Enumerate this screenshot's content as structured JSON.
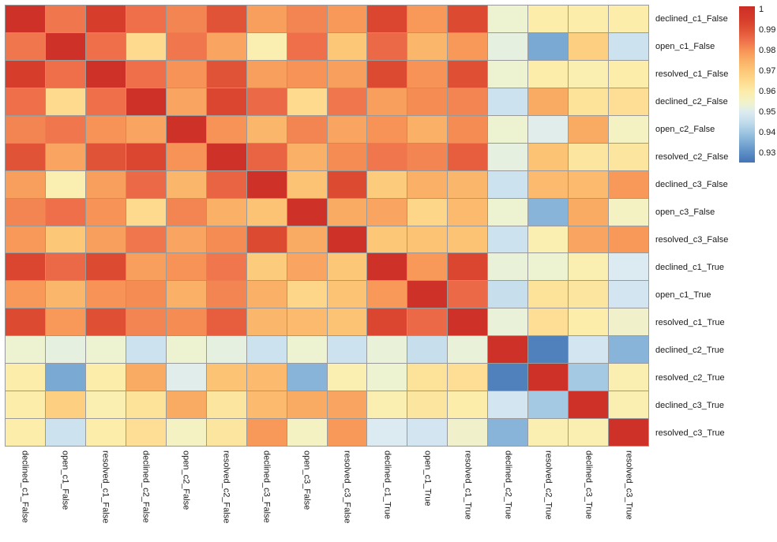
{
  "chart_data": {
    "type": "heatmap",
    "title": "",
    "xlabel": "",
    "ylabel": "",
    "legend_position": "colorbar-right",
    "grid": true,
    "grid_color": "#9a9a9a",
    "background": "#ffffff",
    "label_color": "#1a1a1a",
    "colormap": "RdYlBu_r",
    "categories": [
      "declined_c1_False",
      "open_c1_False",
      "resolved_c1_False",
      "declined_c2_False",
      "open_c2_False",
      "resolved_c2_False",
      "declined_c3_False",
      "open_c3_False",
      "resolved_c3_False",
      "declined_c1_True",
      "open_c1_True",
      "resolved_c1_True",
      "declined_c2_True",
      "resolved_c2_True",
      "declined_c3_True",
      "resolved_c3_True"
    ],
    "matrix": [
      [
        1.0,
        0.984,
        0.995,
        0.985,
        0.982,
        0.99,
        0.978,
        0.982,
        0.979,
        0.993,
        0.979,
        0.992,
        0.954,
        0.96,
        0.96,
        0.96
      ],
      [
        0.984,
        1.0,
        0.985,
        0.965,
        0.984,
        0.977,
        0.959,
        0.985,
        0.97,
        0.986,
        0.974,
        0.979,
        0.952,
        0.935,
        0.968,
        0.947
      ],
      [
        0.995,
        0.985,
        1.0,
        0.985,
        0.98,
        0.99,
        0.978,
        0.98,
        0.978,
        0.992,
        0.98,
        0.991,
        0.954,
        0.96,
        0.959,
        0.96
      ],
      [
        0.985,
        0.965,
        0.985,
        1.0,
        0.977,
        0.993,
        0.986,
        0.965,
        0.984,
        0.978,
        0.981,
        0.982,
        0.947,
        0.976,
        0.963,
        0.964
      ],
      [
        0.982,
        0.984,
        0.98,
        0.977,
        1.0,
        0.98,
        0.974,
        0.982,
        0.977,
        0.98,
        0.975,
        0.981,
        0.954,
        0.951,
        0.976,
        0.956
      ],
      [
        0.99,
        0.977,
        0.99,
        0.993,
        0.98,
        1.0,
        0.987,
        0.975,
        0.981,
        0.984,
        0.982,
        0.988,
        0.952,
        0.971,
        0.962,
        0.962
      ],
      [
        0.978,
        0.959,
        0.978,
        0.986,
        0.974,
        0.987,
        1.0,
        0.971,
        0.992,
        0.969,
        0.975,
        0.974,
        0.947,
        0.973,
        0.973,
        0.979
      ],
      [
        0.982,
        0.985,
        0.98,
        0.965,
        0.982,
        0.975,
        0.971,
        1.0,
        0.976,
        0.977,
        0.966,
        0.973,
        0.954,
        0.937,
        0.976,
        0.956
      ],
      [
        0.979,
        0.97,
        0.978,
        0.984,
        0.977,
        0.981,
        0.992,
        0.976,
        1.0,
        0.97,
        0.971,
        0.971,
        0.947,
        0.959,
        0.977,
        0.979
      ],
      [
        0.993,
        0.986,
        0.992,
        0.978,
        0.98,
        0.984,
        0.969,
        0.977,
        0.97,
        1.0,
        0.979,
        0.993,
        0.953,
        0.954,
        0.959,
        0.95
      ],
      [
        0.979,
        0.974,
        0.98,
        0.981,
        0.975,
        0.982,
        0.975,
        0.966,
        0.971,
        0.979,
        1.0,
        0.986,
        0.946,
        0.963,
        0.962,
        0.948
      ],
      [
        0.992,
        0.979,
        0.991,
        0.982,
        0.981,
        0.988,
        0.974,
        0.973,
        0.971,
        0.993,
        0.986,
        1.0,
        0.953,
        0.964,
        0.96,
        0.955
      ],
      [
        0.954,
        0.952,
        0.954,
        0.947,
        0.954,
        0.952,
        0.947,
        0.954,
        0.947,
        0.953,
        0.946,
        0.953,
        1.0,
        0.928,
        0.948,
        0.937
      ],
      [
        0.96,
        0.935,
        0.96,
        0.976,
        0.951,
        0.971,
        0.973,
        0.937,
        0.959,
        0.954,
        0.963,
        0.964,
        0.928,
        1.0,
        0.941,
        0.959
      ],
      [
        0.96,
        0.968,
        0.959,
        0.963,
        0.976,
        0.962,
        0.973,
        0.976,
        0.977,
        0.959,
        0.962,
        0.96,
        0.948,
        0.941,
        1.0,
        0.959
      ],
      [
        0.96,
        0.947,
        0.96,
        0.964,
        0.956,
        0.962,
        0.979,
        0.956,
        0.979,
        0.95,
        0.948,
        0.955,
        0.937,
        0.959,
        0.959,
        1.0
      ]
    ],
    "colorbar": {
      "ticks": [
        "1",
        "0.99",
        "0.98",
        "0.97",
        "0.96",
        "0.95",
        "0.94",
        "0.93"
      ],
      "tick_values": [
        1.0,
        0.99,
        0.98,
        0.97,
        0.96,
        0.95,
        0.94,
        0.93
      ],
      "value_top": 1.0015,
      "value_bottom": 0.9255
    },
    "colormap_stops": [
      [
        0.925,
        "#4370b4"
      ],
      [
        0.93,
        "#5a8cc3"
      ],
      [
        0.935,
        "#7aa9d3"
      ],
      [
        0.94,
        "#9dc5e1"
      ],
      [
        0.945,
        "#c2dcec"
      ],
      [
        0.95,
        "#dcebf2"
      ],
      [
        0.953,
        "#e9f2d9"
      ],
      [
        0.956,
        "#f4f1c2"
      ],
      [
        0.96,
        "#fcedaa"
      ],
      [
        0.965,
        "#fdda8e"
      ],
      [
        0.97,
        "#fcc878"
      ],
      [
        0.975,
        "#fab167"
      ],
      [
        0.98,
        "#f79357"
      ],
      [
        0.985,
        "#ee6f4a"
      ],
      [
        0.99,
        "#e05336"
      ],
      [
        0.995,
        "#d63d2b"
      ],
      [
        1.0,
        "#ce3127"
      ],
      [
        1.002,
        "#c52a20"
      ]
    ]
  }
}
